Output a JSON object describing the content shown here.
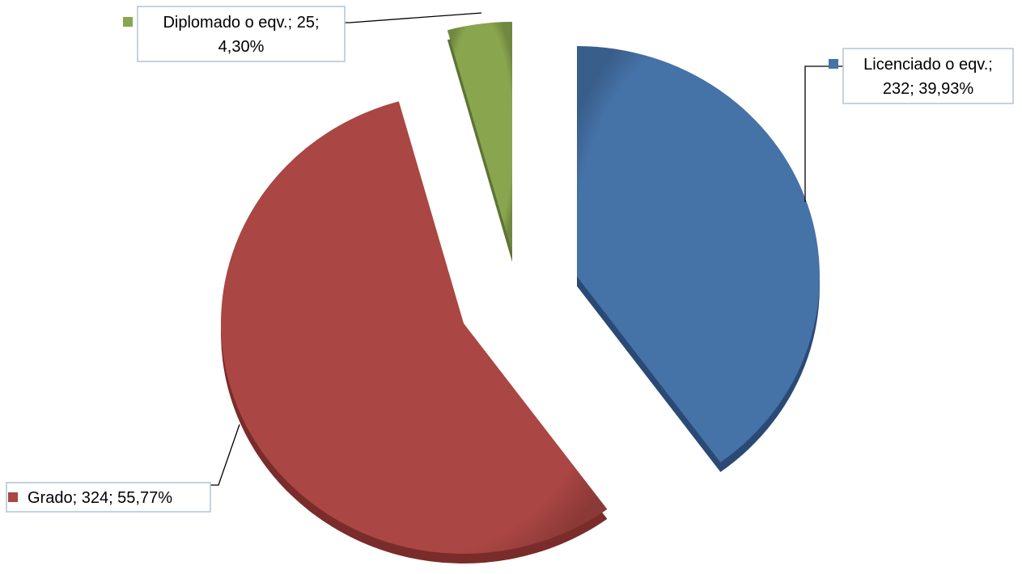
{
  "chart_data": {
    "type": "pie",
    "title": "",
    "slices": [
      {
        "label": "Licenciado o eqv.",
        "value": 232,
        "percent": 39.93,
        "label_lines": [
          "Licenciado o eqv.;",
          "232; 39,93%"
        ],
        "color": "#4572a7"
      },
      {
        "label": "Grado",
        "value": 324,
        "percent": 55.77,
        "label_lines": [
          "Grado; 324; 55,77%"
        ],
        "color": "#aa4643"
      },
      {
        "label": "Diplomado o eqv.",
        "value": 25,
        "percent": 4.3,
        "label_lines": [
          "Diplomado o eqv.; 25;",
          "4,30%"
        ],
        "color": "#89a54e"
      }
    ],
    "exploded": true,
    "legend": "none",
    "data_labels": "callout"
  }
}
